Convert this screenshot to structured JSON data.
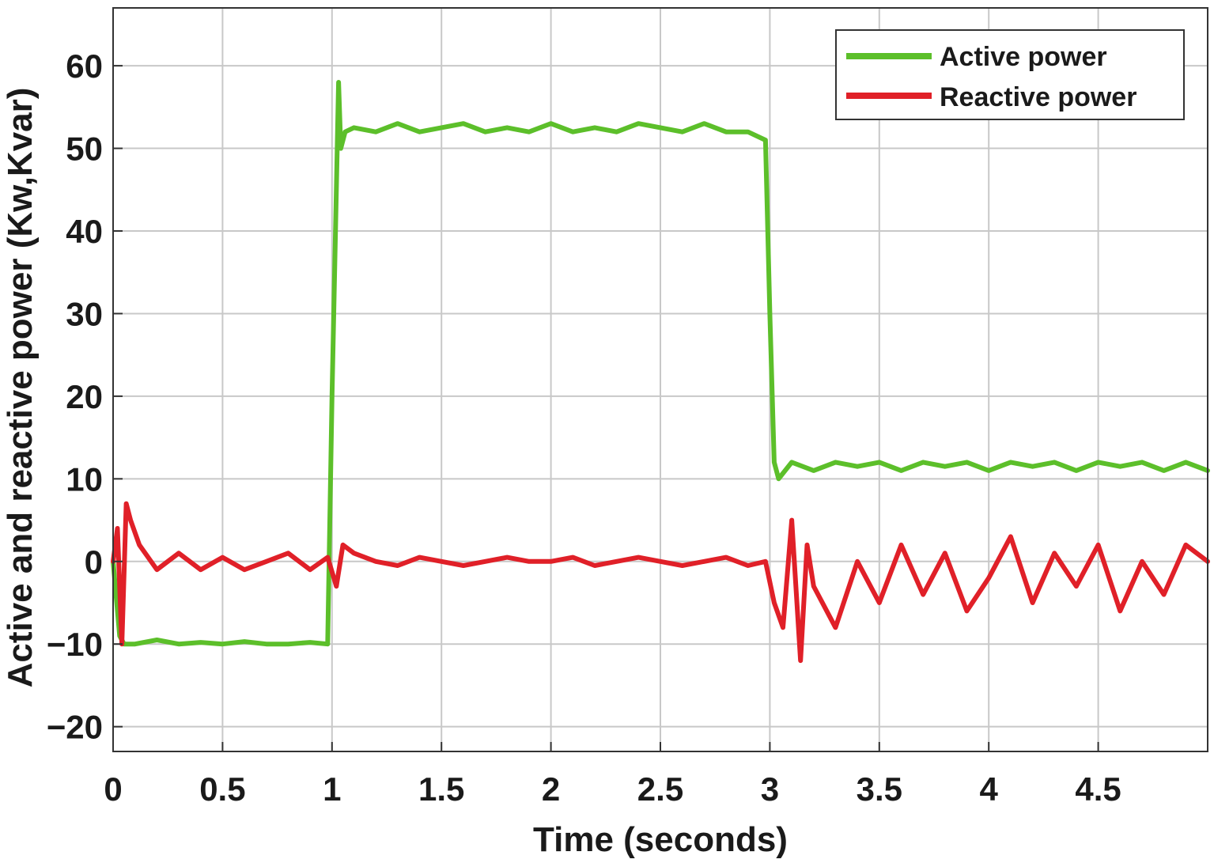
{
  "chart_data": {
    "type": "line",
    "xlabel": "Time (seconds)",
    "ylabel": "Active and reactive power (Kw,Kvar)",
    "xlim": [
      0,
      5
    ],
    "ylim": [
      -23,
      67
    ],
    "xticks": [
      0,
      0.5,
      1,
      1.5,
      2,
      2.5,
      3,
      3.5,
      4,
      4.5
    ],
    "xtick_labels": [
      "0",
      "0.5",
      "1",
      "1.5",
      "2",
      "2.5",
      "3",
      "3.5",
      "4",
      "4.5"
    ],
    "yticks": [
      -20,
      -10,
      0,
      10,
      20,
      30,
      40,
      50,
      60
    ],
    "ytick_labels": [
      "−20",
      "−10",
      "0",
      "10",
      "20",
      "30",
      "40",
      "50",
      "60"
    ],
    "grid": true,
    "legend_position": "top-right",
    "series": [
      {
        "name": "Active power",
        "color": "#5cbf2a",
        "x": [
          0,
          0.03,
          0.05,
          0.1,
          0.2,
          0.3,
          0.4,
          0.5,
          0.6,
          0.7,
          0.8,
          0.9,
          0.98,
          1.0,
          1.02,
          1.03,
          1.04,
          1.06,
          1.1,
          1.2,
          1.3,
          1.4,
          1.5,
          1.6,
          1.7,
          1.8,
          1.9,
          2.0,
          2.1,
          2.2,
          2.3,
          2.4,
          2.5,
          2.6,
          2.7,
          2.8,
          2.9,
          2.98,
          3.0,
          3.02,
          3.04,
          3.1,
          3.2,
          3.3,
          3.4,
          3.5,
          3.6,
          3.7,
          3.8,
          3.9,
          4.0,
          4.1,
          4.2,
          4.3,
          4.4,
          4.5,
          4.6,
          4.7,
          4.8,
          4.9,
          5.0
        ],
        "y": [
          0,
          -9,
          -10,
          -10,
          -9.5,
          -10,
          -9.8,
          -10,
          -9.7,
          -10,
          -10,
          -9.8,
          -10,
          20,
          45,
          58,
          50,
          52,
          52.5,
          52,
          53,
          52,
          52.5,
          53,
          52,
          52.5,
          52,
          53,
          52,
          52.5,
          52,
          53,
          52.5,
          52,
          53,
          52,
          52,
          51,
          30,
          12,
          10,
          12,
          11,
          12,
          11.5,
          12,
          11,
          12,
          11.5,
          12,
          11,
          12,
          11.5,
          12,
          11,
          12,
          11.5,
          12,
          11,
          12,
          11
        ]
      },
      {
        "name": "Reactive power",
        "color": "#e02028",
        "x": [
          0,
          0.02,
          0.04,
          0.06,
          0.08,
          0.12,
          0.2,
          0.3,
          0.4,
          0.5,
          0.6,
          0.7,
          0.8,
          0.9,
          0.98,
          1.02,
          1.05,
          1.1,
          1.2,
          1.3,
          1.4,
          1.5,
          1.6,
          1.7,
          1.8,
          1.9,
          2.0,
          2.1,
          2.2,
          2.3,
          2.4,
          2.5,
          2.6,
          2.7,
          2.8,
          2.9,
          2.98,
          3.02,
          3.06,
          3.1,
          3.14,
          3.17,
          3.2,
          3.3,
          3.4,
          3.5,
          3.6,
          3.7,
          3.8,
          3.9,
          4.0,
          4.1,
          4.2,
          4.3,
          4.4,
          4.5,
          4.6,
          4.7,
          4.8,
          4.9,
          5.0
        ],
        "y": [
          0,
          4,
          -10,
          7,
          5,
          2,
          -1,
          1,
          -1,
          0.5,
          -1,
          0,
          1,
          -1,
          0.5,
          -3,
          2,
          1,
          0,
          -0.5,
          0.5,
          0,
          -0.5,
          0,
          0.5,
          0,
          0,
          0.5,
          -0.5,
          0,
          0.5,
          0,
          -0.5,
          0,
          0.5,
          -0.5,
          0,
          -5,
          -8,
          5,
          -12,
          2,
          -3,
          -8,
          0,
          -5,
          2,
          -4,
          1,
          -6,
          -2,
          3,
          -5,
          1,
          -3,
          2,
          -6,
          0,
          -4,
          2,
          0
        ]
      }
    ]
  }
}
